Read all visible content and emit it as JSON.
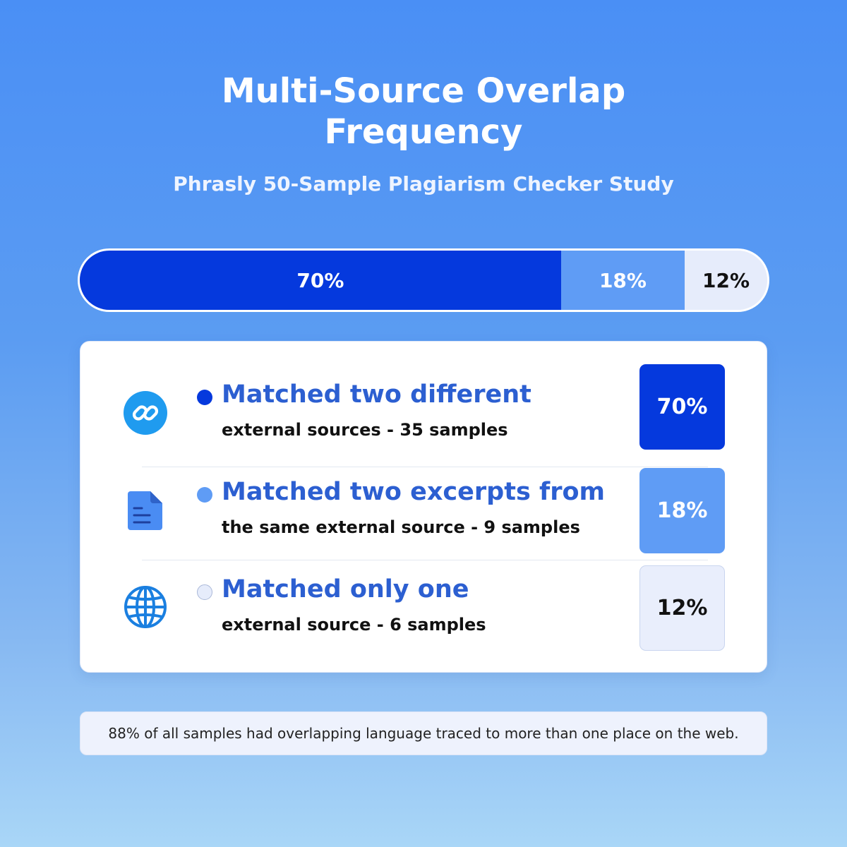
{
  "title_line1": "Multi-Source Overlap",
  "title_line2": "Frequency",
  "subtitle": "Phrasly 50-Sample Plagiarism Checker Study",
  "colors": {
    "primary": "#0539dd",
    "secondary": "#5f9cf5",
    "tertiary": "#e6ecfb",
    "heading": "#2c5fd1"
  },
  "chart_data": {
    "type": "bar",
    "stacked": true,
    "title": "Multi-Source Overlap Frequency",
    "categories": [
      "Matched two different external sources",
      "Matched two excerpts from the same external source",
      "Matched only one external source"
    ],
    "values": [
      70,
      18,
      12
    ],
    "labels": [
      "70%",
      "18%",
      "12%"
    ],
    "samples": [
      35,
      9,
      6
    ],
    "total": 50
  },
  "legend": [
    {
      "icon": "link-icon",
      "title": "Matched two different",
      "subtitle": "external sources - 35 samples",
      "percent": "70%"
    },
    {
      "icon": "document-icon",
      "title": "Matched two excerpts from",
      "subtitle": "the same external source - 9 samples",
      "percent": "18%"
    },
    {
      "icon": "globe-icon",
      "title": "Matched only one",
      "subtitle": "external source - 6 samples",
      "percent": "12%"
    }
  ],
  "footnote": "88% of all samples had overlapping language traced to more than one place on the web."
}
